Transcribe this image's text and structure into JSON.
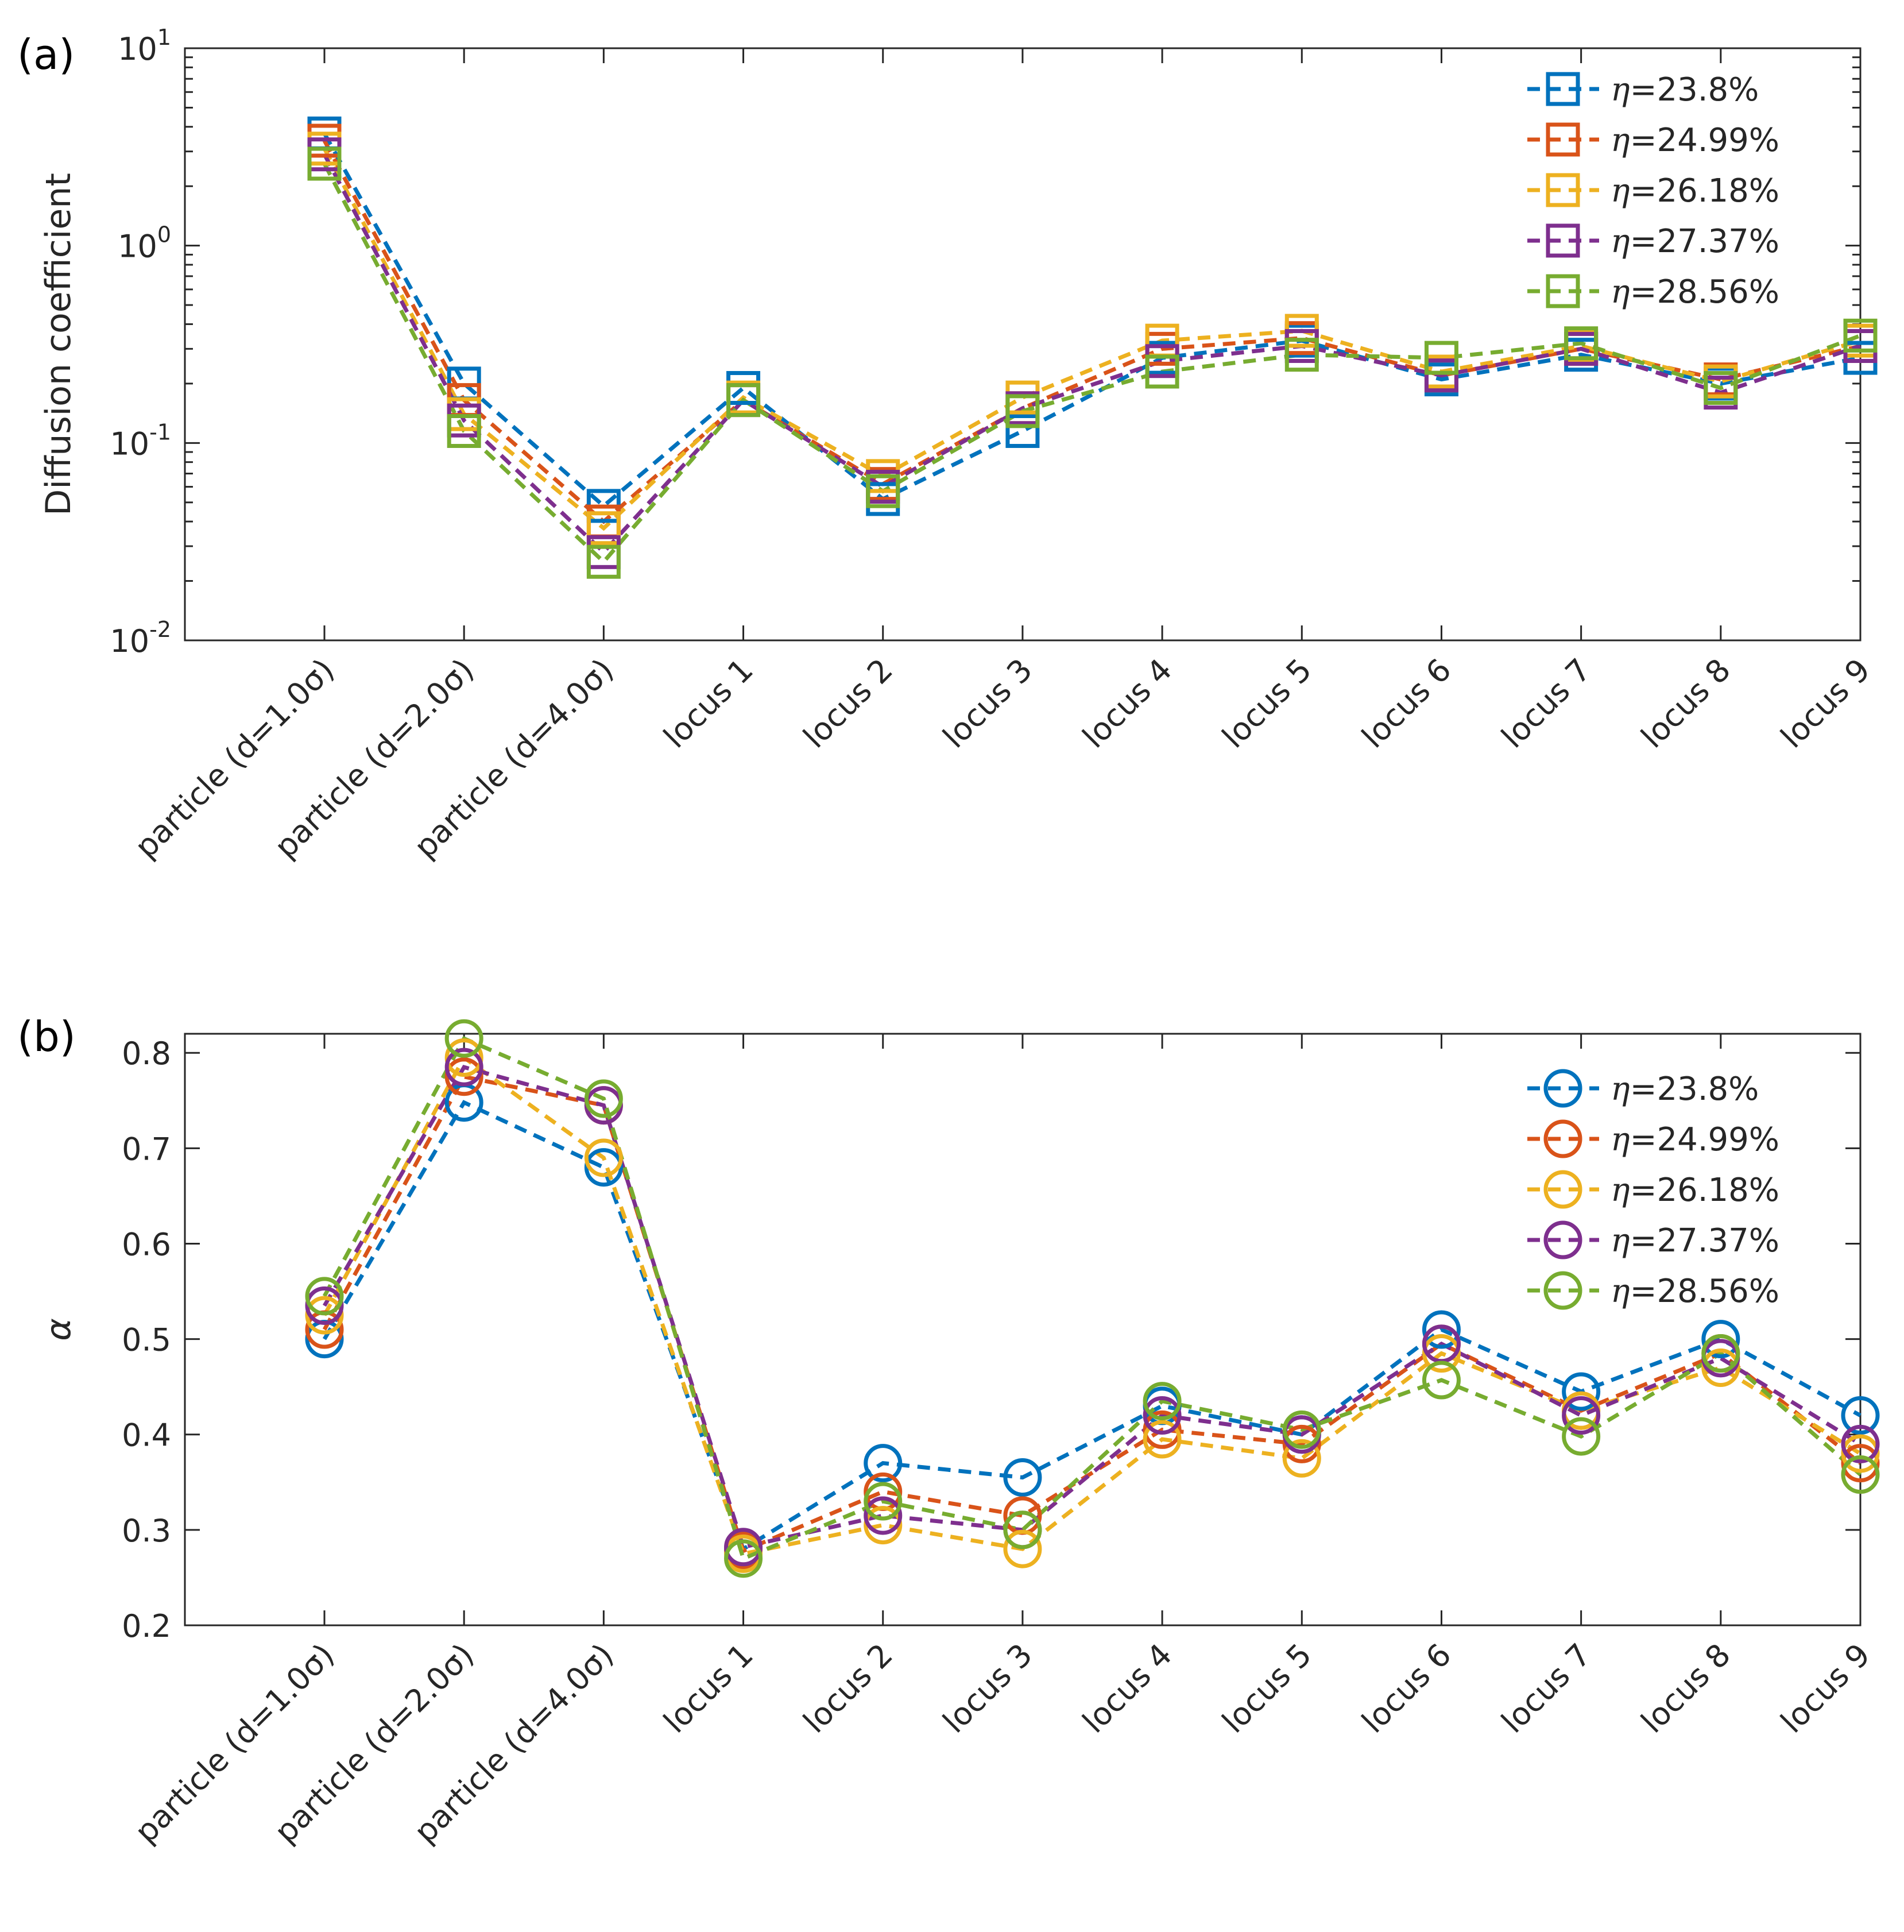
{
  "chart_data": [
    {
      "id": "a",
      "type": "line",
      "panel_label": "(a)",
      "ylabel": "Diffusion coefficient",
      "yscale": "log",
      "ylim": [
        0.01,
        10
      ],
      "ytick_labels": [
        {
          "base": "10",
          "exp": "-2",
          "value": 0.01
        },
        {
          "base": "10",
          "exp": "-1",
          "value": 0.1
        },
        {
          "base": "10",
          "exp": "0",
          "value": 1
        },
        {
          "base": "10",
          "exp": "1",
          "value": 10
        }
      ],
      "marker": "square",
      "categories": [
        "particle (d=1.0σ)",
        "particle (d=2.0σ)",
        "particle (d=4.0σ)",
        "locus 1",
        "locus 2",
        "locus 3",
        "locus 4",
        "locus 5",
        "locus 6",
        "locus 7",
        "locus 8",
        "locus 9"
      ],
      "legend_position": "top-right",
      "series": [
        {
          "name": "η=23.8%",
          "eta_value": "=23.8%",
          "color": "#0072BD",
          "values": [
            3.7,
            0.2,
            0.048,
            0.19,
            0.052,
            0.115,
            0.27,
            0.33,
            0.21,
            0.28,
            0.2,
            0.27
          ]
        },
        {
          "name": "η=24.99%",
          "eta_value": "=24.99%",
          "color": "#D95319",
          "values": [
            3.4,
            0.165,
            0.04,
            0.165,
            0.062,
            0.15,
            0.3,
            0.34,
            0.22,
            0.3,
            0.21,
            0.31
          ]
        },
        {
          "name": "η=26.18%",
          "eta_value": "=26.18%",
          "color": "#EDB120",
          "values": [
            3.1,
            0.14,
            0.037,
            0.17,
            0.068,
            0.17,
            0.33,
            0.37,
            0.23,
            0.31,
            0.205,
            0.33
          ]
        },
        {
          "name": "η=27.37%",
          "eta_value": "=27.37%",
          "color": "#7E2F8E",
          "values": [
            2.9,
            0.13,
            0.028,
            0.165,
            0.06,
            0.15,
            0.26,
            0.31,
            0.22,
            0.3,
            0.18,
            0.31
          ]
        },
        {
          "name": "η=28.56%",
          "eta_value": "=28.56%",
          "color": "#77AC30",
          "values": [
            2.6,
            0.115,
            0.025,
            0.165,
            0.057,
            0.145,
            0.23,
            0.28,
            0.27,
            0.32,
            0.19,
            0.35
          ]
        }
      ]
    },
    {
      "id": "b",
      "type": "line",
      "panel_label": "(b)",
      "ylabel": "α",
      "yscale": "linear",
      "ylim": [
        0.2,
        0.82
      ],
      "yticks": [
        0.2,
        0.3,
        0.4,
        0.5,
        0.6,
        0.7,
        0.8
      ],
      "ytick_labels": [
        "0.2",
        "0.3",
        "0.4",
        "0.5",
        "0.6",
        "0.7",
        "0.8"
      ],
      "marker": "circle",
      "categories": [
        "particle (d=1.0σ)",
        "particle (d=2.0σ)",
        "particle (d=4.0σ)",
        "locus 1",
        "locus 2",
        "locus 3",
        "locus 4",
        "locus 5",
        "locus 6",
        "locus 7",
        "locus 8",
        "locus 9"
      ],
      "legend_position": "top-right",
      "series": [
        {
          "name": "η=23.8%",
          "eta_value": "=23.8%",
          "color": "#0072BD",
          "values": [
            0.5,
            0.748,
            0.68,
            0.28,
            0.37,
            0.355,
            0.43,
            0.4,
            0.51,
            0.445,
            0.5,
            0.42
          ]
        },
        {
          "name": "η=24.99%",
          "eta_value": "=24.99%",
          "color": "#D95319",
          "values": [
            0.51,
            0.775,
            0.745,
            0.278,
            0.34,
            0.315,
            0.405,
            0.39,
            0.495,
            0.425,
            0.485,
            0.37
          ]
        },
        {
          "name": "η=26.18%",
          "eta_value": "=26.18%",
          "color": "#EDB120",
          "values": [
            0.525,
            0.795,
            0.69,
            0.275,
            0.305,
            0.28,
            0.395,
            0.375,
            0.485,
            0.425,
            0.47,
            0.38
          ]
        },
        {
          "name": "η=27.37%",
          "eta_value": "=27.37%",
          "color": "#7E2F8E",
          "values": [
            0.535,
            0.785,
            0.745,
            0.282,
            0.315,
            0.3,
            0.42,
            0.4,
            0.495,
            0.42,
            0.48,
            0.39
          ]
        },
        {
          "name": "η=28.56%",
          "eta_value": "=28.56%",
          "color": "#77AC30",
          "values": [
            0.545,
            0.815,
            0.752,
            0.27,
            0.33,
            0.3,
            0.435,
            0.405,
            0.457,
            0.398,
            0.485,
            0.358
          ]
        }
      ]
    }
  ]
}
